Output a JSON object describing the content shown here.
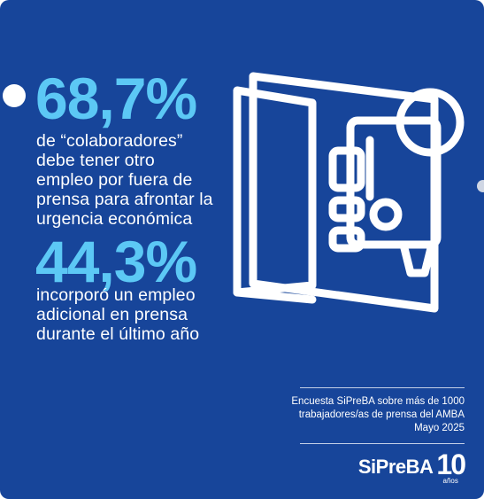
{
  "stats": [
    {
      "value": "68,7%",
      "description": "de “colaboradores”\ndebe tener otro\nempleo por fuera de\nprensa para afrontar la\nurgencia económica"
    },
    {
      "value": "44,3%",
      "description": "incorporó un empleo\nadicional en prensa\ndurante el último año"
    }
  ],
  "source_note": "Encuesta SiPreBA sobre más de 1000\ntrabajadores/as de prensa del AMBA\nMayo 2025",
  "logo": {
    "name": "SiPreBA",
    "number": "10",
    "subtitle": "años"
  },
  "illustration": {
    "icon": "newspaper-microphone-icon"
  },
  "colors": {
    "background": "#17459a",
    "accent": "#5cc8f5",
    "text": "#ffffff"
  }
}
